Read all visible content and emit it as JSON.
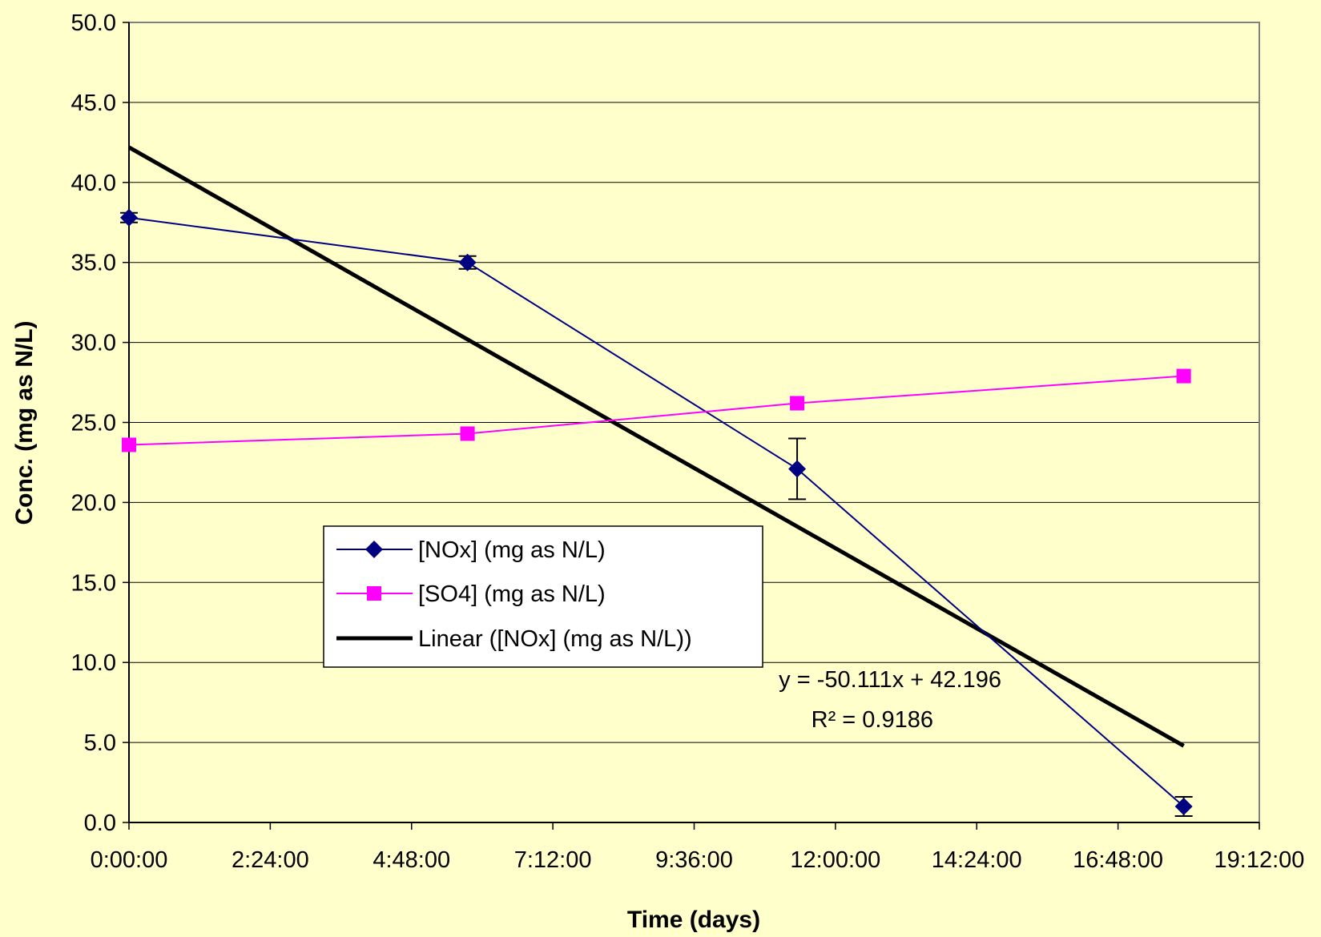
{
  "chart_data": {
    "type": "line",
    "xlabel": "Time (days)",
    "ylabel": "Conc. (mg as N/L)",
    "xlim": [
      0,
      0.8
    ],
    "ylim": [
      0,
      50
    ],
    "x_ticks": [
      0,
      0.1,
      0.2,
      0.3,
      0.4,
      0.5,
      0.6,
      0.7,
      0.8
    ],
    "x_tick_labels": [
      "0:00:00",
      "2:24:00",
      "4:48:00",
      "7:12:00",
      "9:36:00",
      "12:00:00",
      "14:24:00",
      "16:48:00",
      "19:12:00"
    ],
    "y_ticks": [
      0,
      5,
      10,
      15,
      20,
      25,
      30,
      35,
      40,
      45,
      50
    ],
    "y_tick_labels": [
      "0.0",
      "5.0",
      "10.0",
      "15.0",
      "20.0",
      "25.0",
      "30.0",
      "35.0",
      "40.0",
      "45.0",
      "50.0"
    ],
    "grid": "horizontal",
    "legend_position": "center-left",
    "series": [
      {
        "name": "[NOx] (mg as N/L)",
        "color": "#000080",
        "marker": "diamond",
        "x": [
          0,
          0.2396,
          0.4729,
          0.7465
        ],
        "y": [
          37.8,
          35.0,
          22.1,
          1.0
        ],
        "error": [
          0.3,
          0.4,
          1.9,
          0.6
        ]
      },
      {
        "name": "[SO4] (mg as N/L)",
        "color": "#ff00ff",
        "marker": "square",
        "x": [
          0,
          0.2396,
          0.4729,
          0.7465
        ],
        "y": [
          23.6,
          24.3,
          26.2,
          27.9
        ]
      },
      {
        "name": "Linear ([NOx] (mg as N/L))",
        "color": "#000000",
        "type": "trendline",
        "slope": -50.111,
        "intercept": 42.196,
        "x_range": [
          0,
          0.7465
        ]
      }
    ],
    "annotations": {
      "equation": "y = -50.111x + 42.196",
      "r_squared": "R² = 0.9186"
    }
  }
}
